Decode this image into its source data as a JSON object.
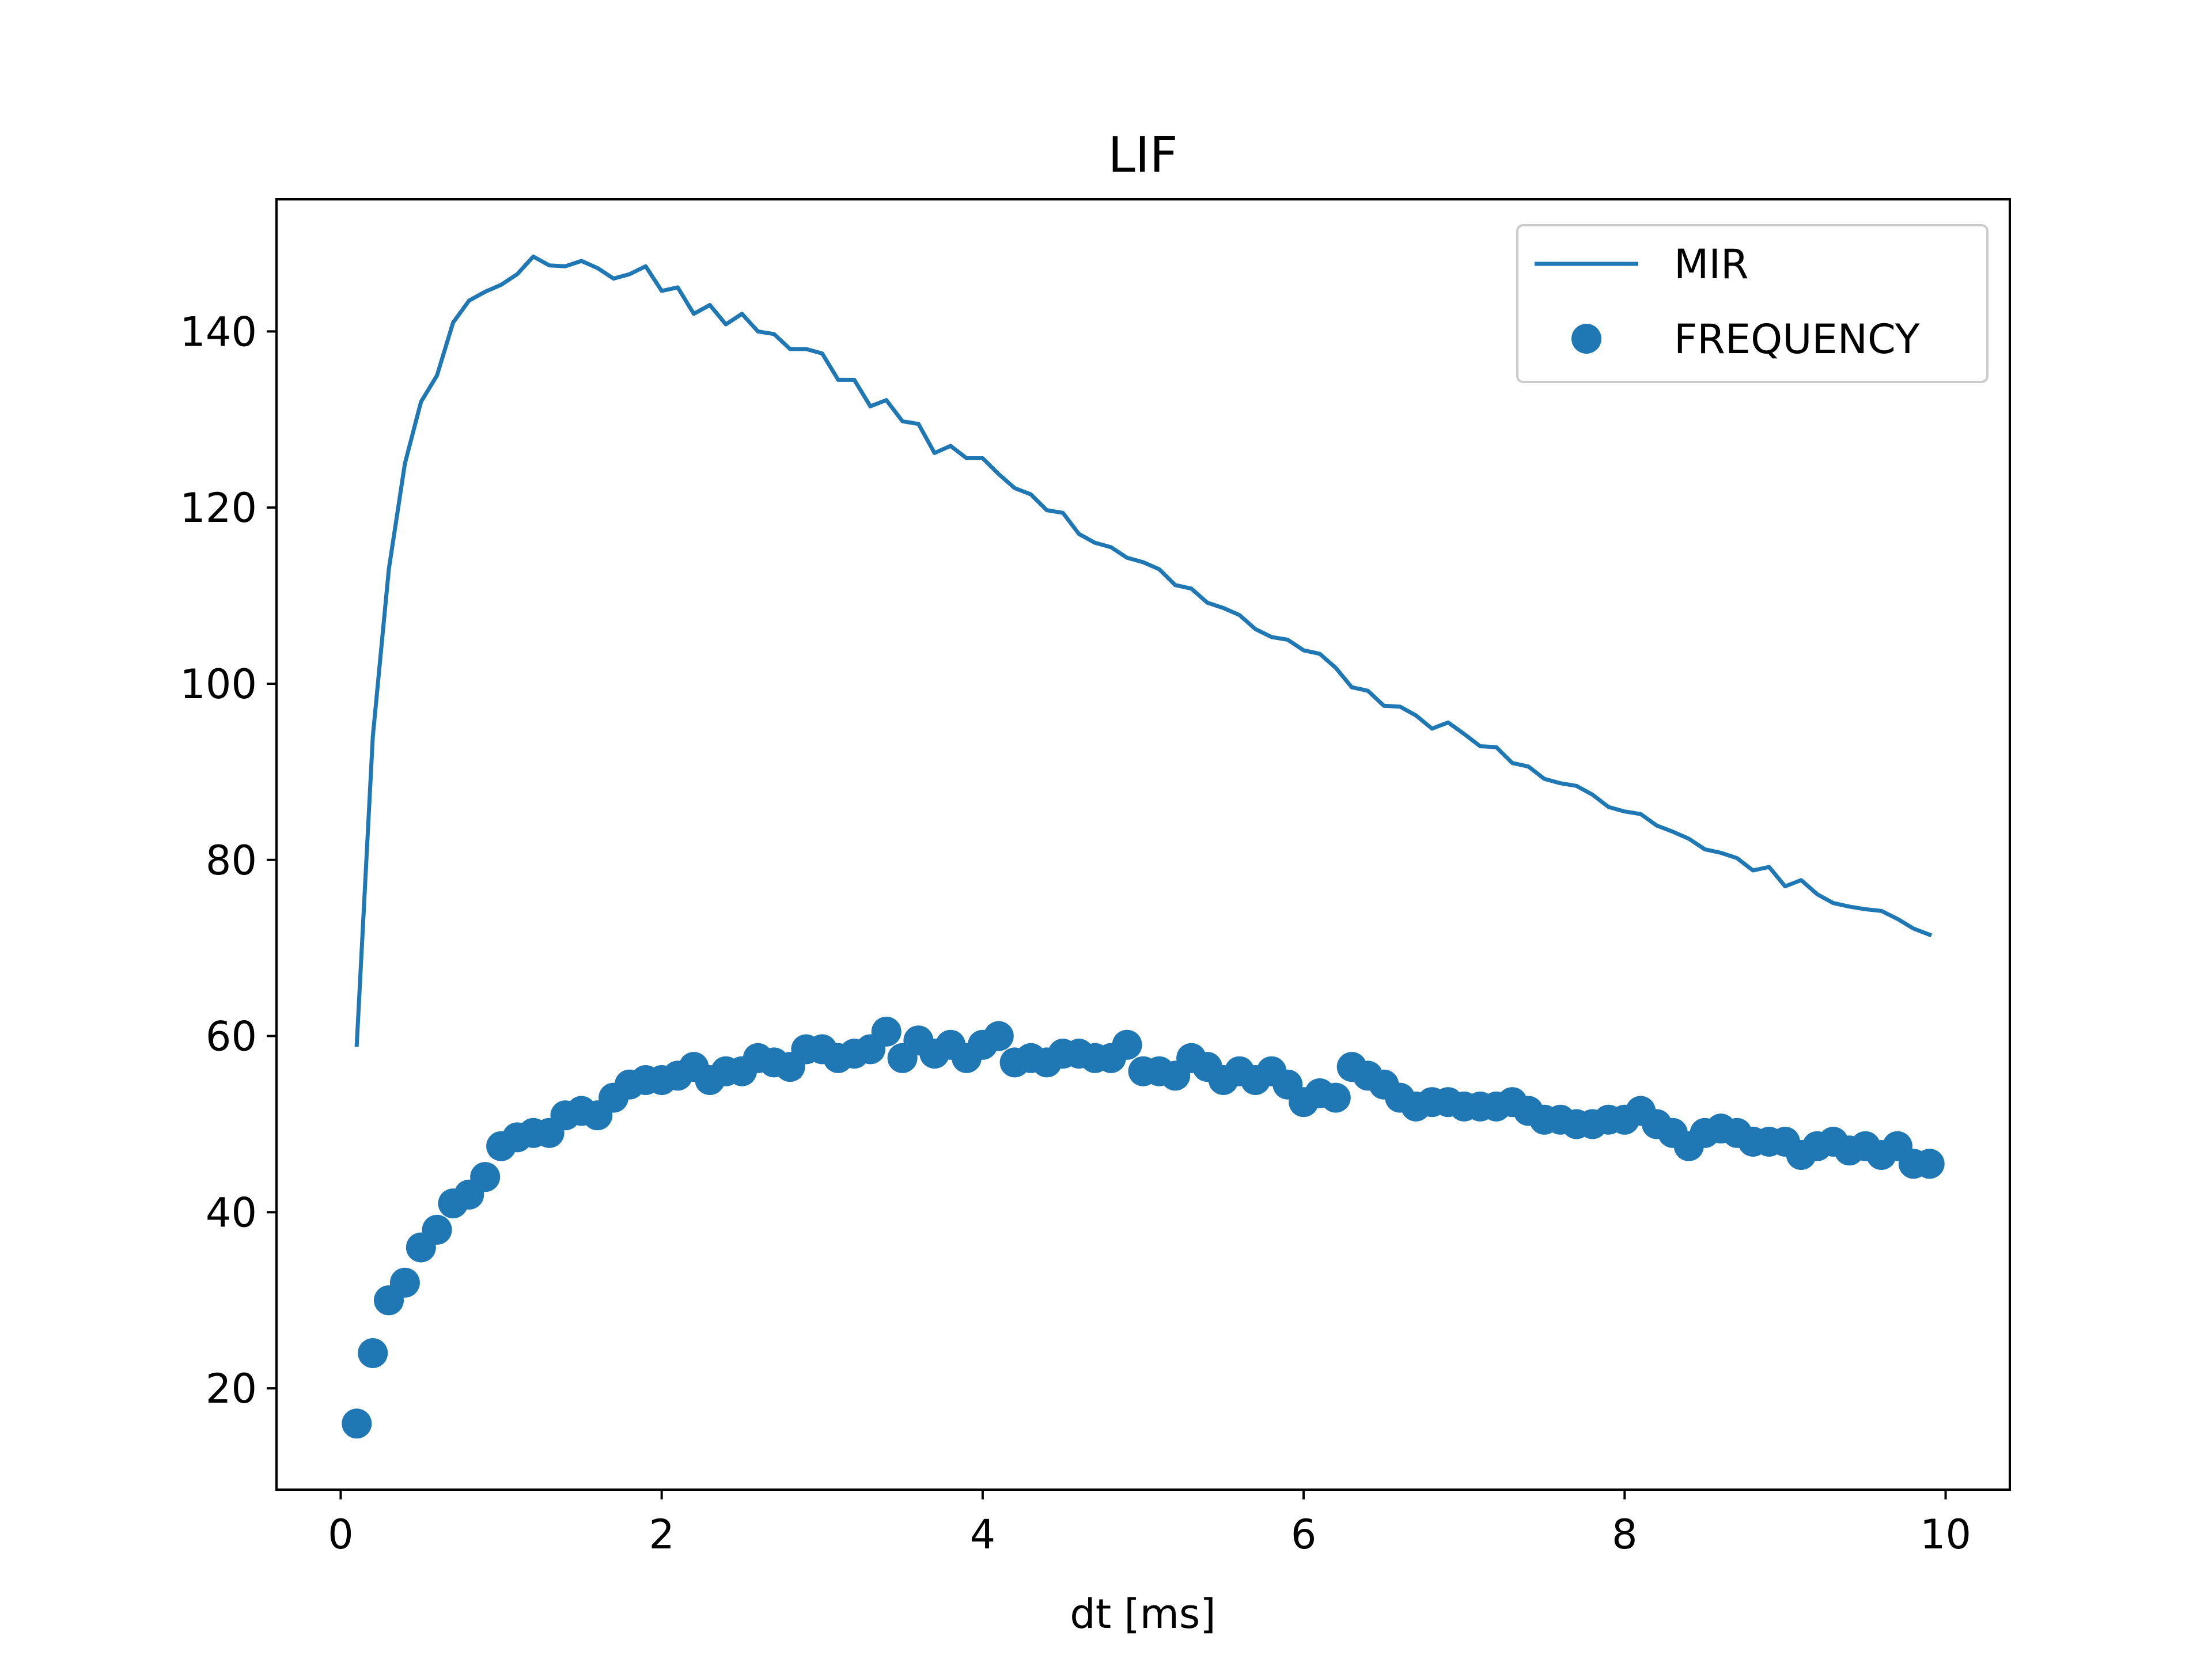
{
  "chart_data": {
    "type": "line+scatter",
    "title": "LIF",
    "xlabel": "dt [ms]",
    "ylabel": "",
    "xlim": [
      -0.4,
      10.4
    ],
    "ylim": [
      8.5,
      155
    ],
    "xticks": [
      0,
      2,
      4,
      6,
      8,
      10
    ],
    "yticks": [
      20,
      40,
      60,
      80,
      100,
      120,
      140
    ],
    "grid": false,
    "legend": "top-right",
    "color": "#1f77b4",
    "series": [
      {
        "name": "MIR",
        "type": "line",
        "x": [
          0.1,
          0.2,
          0.3,
          0.4,
          0.5,
          0.6,
          0.7,
          0.8,
          0.9,
          1.0,
          1.1,
          1.2,
          1.3,
          1.4,
          1.5,
          1.6,
          1.7,
          1.8,
          1.9,
          2.0,
          2.1,
          2.2,
          2.3,
          2.4,
          2.5,
          2.6,
          2.7,
          2.8,
          2.9,
          3.0,
          3.1,
          3.2,
          3.3,
          3.4,
          3.5,
          3.6,
          3.7,
          3.8,
          3.9,
          4.0,
          4.1,
          4.2,
          4.3,
          4.4,
          4.5,
          4.6,
          4.7,
          4.8,
          4.9,
          5.0,
          5.1,
          5.2,
          5.3,
          5.4,
          5.5,
          5.6,
          5.7,
          5.8,
          5.9,
          6.0,
          6.1,
          6.2,
          6.3,
          6.4,
          6.5,
          6.6,
          6.7,
          6.8,
          6.9,
          7.0,
          7.1,
          7.2,
          7.3,
          7.4,
          7.5,
          7.6,
          7.7,
          7.8,
          7.9,
          8.0,
          8.1,
          8.2,
          8.3,
          8.4,
          8.5,
          8.6,
          8.7,
          8.8,
          8.9,
          9.0,
          9.1,
          9.2,
          9.3,
          9.4,
          9.5,
          9.6,
          9.7,
          9.8,
          9.9
        ],
        "values": [
          59,
          94,
          113,
          125,
          132,
          135,
          141,
          143.5,
          144.5,
          145.3,
          146.5,
          148.5,
          147.5,
          147.4,
          148,
          147.2,
          146,
          146.5,
          147.4,
          144.6,
          145,
          142,
          143,
          140.8,
          142,
          140,
          139.7,
          138,
          138,
          137.5,
          134.5,
          134.5,
          131.5,
          132.2,
          129.8,
          129.5,
          126.2,
          127,
          125.6,
          125.6,
          123.8,
          122.2,
          121.5,
          119.7,
          119.4,
          117,
          116,
          115.5,
          114.3,
          113.8,
          113,
          111.2,
          110.8,
          109.2,
          108.6,
          107.8,
          106.2,
          105.3,
          105,
          103.8,
          103.4,
          101.8,
          99.6,
          99.2,
          97.5,
          97.4,
          96.4,
          94.9,
          95.6,
          94.3,
          92.9,
          92.8,
          91,
          90.6,
          89.2,
          88.7,
          88.4,
          87.4,
          86,
          85.5,
          85.2,
          83.9,
          83.2,
          82.4,
          81.2,
          80.8,
          80.2,
          78.8,
          79.2,
          77,
          77.7,
          76.1,
          75.1,
          74.7,
          74.4,
          74.2,
          73.3,
          72.2,
          71.5
        ]
      },
      {
        "name": "FREQUENCY",
        "type": "scatter",
        "x": [
          0.1,
          0.2,
          0.3,
          0.4,
          0.5,
          0.6,
          0.7,
          0.8,
          0.9,
          1.0,
          1.1,
          1.2,
          1.3,
          1.4,
          1.5,
          1.6,
          1.7,
          1.8,
          1.9,
          2.0,
          2.1,
          2.2,
          2.3,
          2.4,
          2.5,
          2.6,
          2.7,
          2.8,
          2.9,
          3.0,
          3.1,
          3.2,
          3.3,
          3.4,
          3.5,
          3.6,
          3.7,
          3.8,
          3.9,
          4.0,
          4.1,
          4.2,
          4.3,
          4.4,
          4.5,
          4.6,
          4.7,
          4.8,
          4.9,
          5.0,
          5.1,
          5.2,
          5.3,
          5.4,
          5.5,
          5.6,
          5.7,
          5.8,
          5.9,
          6.0,
          6.1,
          6.2,
          6.3,
          6.4,
          6.5,
          6.6,
          6.7,
          6.8,
          6.9,
          7.0,
          7.1,
          7.2,
          7.3,
          7.4,
          7.5,
          7.6,
          7.7,
          7.8,
          7.9,
          8.0,
          8.1,
          8.2,
          8.3,
          8.4,
          8.5,
          8.6,
          8.7,
          8.8,
          8.9,
          9.0,
          9.1,
          9.2,
          9.3,
          9.4,
          9.5,
          9.6,
          9.7,
          9.8,
          9.9
        ],
        "values": [
          16,
          24,
          30,
          32,
          36,
          38,
          41,
          42,
          44,
          47.5,
          48.5,
          49,
          49,
          51,
          51.5,
          51,
          53,
          54.5,
          55,
          55,
          55.5,
          56.5,
          55,
          56,
          56,
          57.5,
          57,
          56.5,
          58.5,
          58.5,
          57.5,
          58,
          58.5,
          60.5,
          57.5,
          59.5,
          58,
          59,
          57.5,
          59,
          60,
          57,
          57.5,
          57,
          58,
          58,
          57.5,
          57.5,
          59,
          56,
          56,
          55.5,
          57.5,
          56.5,
          55,
          56,
          55,
          56,
          54.5,
          52.5,
          53.5,
          53,
          56.5,
          55.5,
          54.5,
          53,
          52,
          52.5,
          52.5,
          52,
          52,
          52,
          52.5,
          51.5,
          50.5,
          50.5,
          50,
          50,
          50.5,
          50.5,
          51.5,
          50,
          49,
          47.5,
          49,
          49.5,
          49,
          48,
          48,
          48,
          46.5,
          47.5,
          48,
          47,
          47.5,
          46.5,
          47.5,
          45.5,
          45.5
        ]
      }
    ]
  }
}
